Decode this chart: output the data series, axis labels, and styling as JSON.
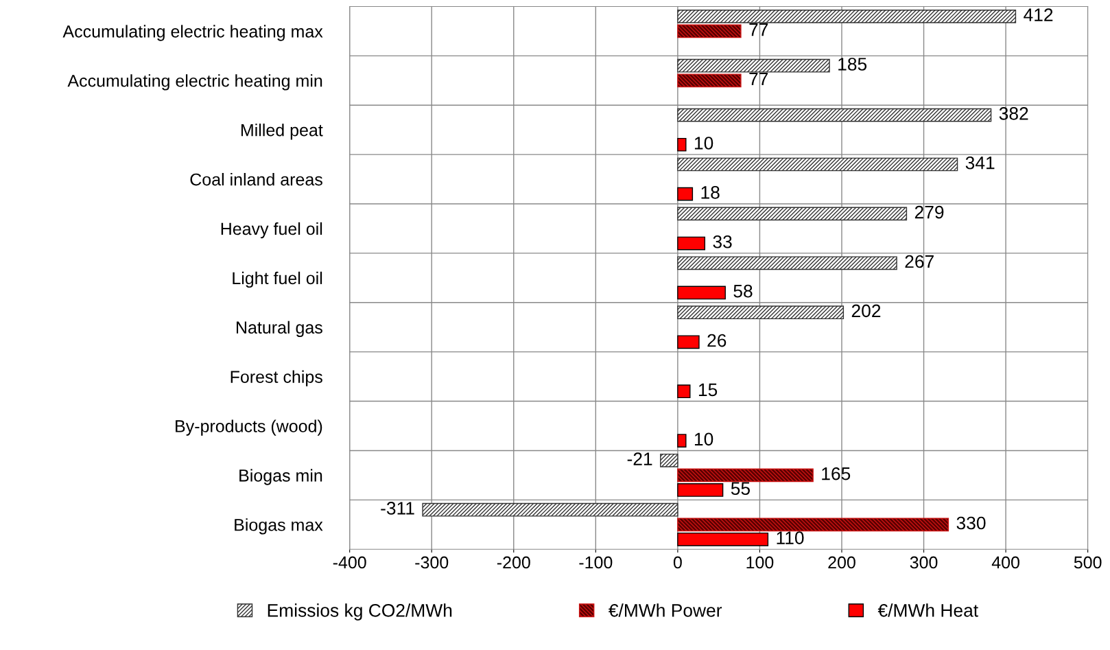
{
  "chart_data": {
    "type": "bar",
    "orientation": "horizontal",
    "categories": [
      "Accumulating electric heating max",
      "Accumulating electric heating min",
      "Milled peat",
      "Coal inland areas",
      "Heavy fuel oil",
      "Light fuel oil",
      "Natural gas",
      "Forest chips",
      "By-products (wood)",
      "Biogas min",
      "Biogas max"
    ],
    "series": [
      {
        "name": "Emissios kg CO2/MWh",
        "color": "#333333",
        "values": [
          412,
          185,
          382,
          341,
          279,
          267,
          202,
          null,
          null,
          -21,
          -311
        ]
      },
      {
        "name": "€/MWh Power",
        "color": "#cc1111",
        "values": [
          77,
          77,
          null,
          null,
          null,
          null,
          null,
          null,
          null,
          165,
          330
        ]
      },
      {
        "name": "€/MWh Heat",
        "color": "#ff0000",
        "values": [
          null,
          null,
          10,
          18,
          33,
          58,
          26,
          15,
          10,
          55,
          110
        ]
      }
    ],
    "xlim": [
      -400,
      500
    ],
    "xticks": [
      -400,
      -300,
      -200,
      -100,
      0,
      100,
      200,
      300,
      400,
      500
    ],
    "grid": true,
    "legend": "bottom",
    "data_labels": true
  }
}
